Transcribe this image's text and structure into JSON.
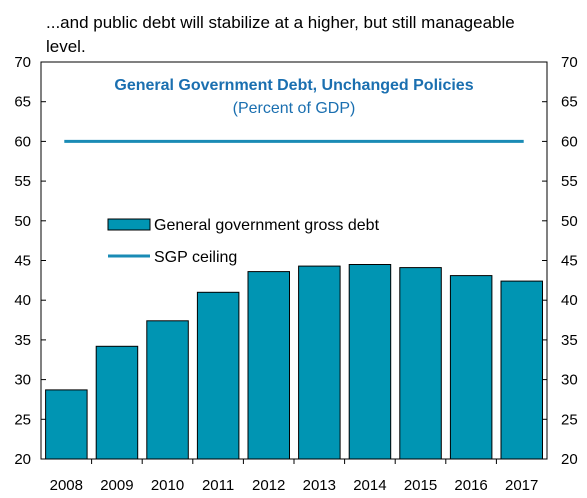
{
  "intro_text": "...and public debt will stabilize at a higher, but still manageable level.",
  "chart_data": {
    "type": "bar",
    "title": "General Government Debt, Unchanged Policies",
    "subtitle": "(Percent of GDP)",
    "categories": [
      "2008",
      "2009",
      "2010",
      "2011",
      "2012",
      "2013",
      "2014",
      "2015",
      "2016",
      "2017"
    ],
    "series": [
      {
        "name": "General government gross debt",
        "type": "bar",
        "values": [
          28.7,
          34.2,
          37.4,
          41.0,
          43.6,
          44.3,
          44.5,
          44.1,
          43.1,
          42.4
        ]
      },
      {
        "name": "SGP ceiling",
        "type": "line",
        "values": [
          60,
          60,
          60,
          60,
          60,
          60,
          60,
          60,
          60,
          60
        ]
      }
    ],
    "ylim": [
      20,
      70
    ],
    "yticks": [
      "20",
      "25",
      "30",
      "35",
      "40",
      "45",
      "50",
      "55",
      "60",
      "65",
      "70"
    ],
    "axes": "left-and-right",
    "grid": false,
    "legend_position": "middle-left",
    "colors": {
      "bar": "#0095b3",
      "bar_edge": "#000000",
      "line": "#1a8bb5",
      "title": "#1a6fb0"
    }
  }
}
